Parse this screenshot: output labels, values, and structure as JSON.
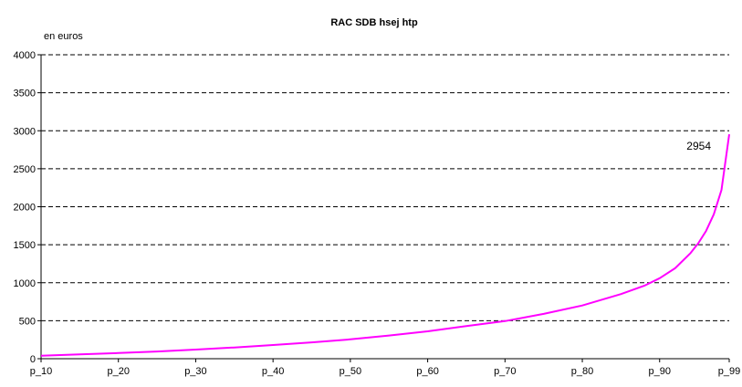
{
  "chart_data": {
    "type": "line",
    "title": "RAC SDB hsej htp",
    "ylabel": "en euros",
    "xlabel": "",
    "ylim": [
      0,
      4000
    ],
    "yticks": [
      0,
      500,
      1000,
      1500,
      2000,
      2500,
      3000,
      3500,
      4000
    ],
    "xlim": [
      10,
      99
    ],
    "xticks": [
      {
        "value": 10,
        "label": "p_10"
      },
      {
        "value": 20,
        "label": "p_20"
      },
      {
        "value": 30,
        "label": "p_30"
      },
      {
        "value": 40,
        "label": "p_40"
      },
      {
        "value": 50,
        "label": "p_50"
      },
      {
        "value": 60,
        "label": "p_60"
      },
      {
        "value": 70,
        "label": "p_70"
      },
      {
        "value": 80,
        "label": "p_80"
      },
      {
        "value": 90,
        "label": "p_90"
      },
      {
        "value": 99,
        "label": "p_99"
      }
    ],
    "grid": "horizontal dashed",
    "legend": "none",
    "line_color": "#ff00ff",
    "series": [
      {
        "x": [
          10,
          15,
          20,
          25,
          30,
          35,
          40,
          45,
          50,
          55,
          60,
          65,
          70,
          75,
          80,
          85,
          88,
          90,
          92,
          94,
          95,
          96,
          97,
          98,
          99
        ],
        "values": [
          40,
          58,
          75,
          95,
          120,
          148,
          180,
          215,
          255,
          305,
          360,
          430,
          495,
          590,
          700,
          850,
          960,
          1060,
          1190,
          1390,
          1520,
          1680,
          1900,
          2220,
          2954
        ]
      }
    ],
    "annotations": [
      {
        "x": 99,
        "y": 2954,
        "text": "2954"
      }
    ]
  }
}
